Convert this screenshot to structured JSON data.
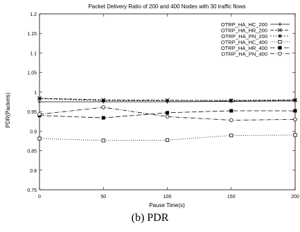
{
  "caption": "(b) PDR",
  "chart_data": {
    "type": "line",
    "title": "Packet Delivery Ratio of 200 and 400 Nodes with 30 traffic flows",
    "xlabel": "Pause Time(s)",
    "ylabel": "PDR(Packets)",
    "xlim": [
      0,
      200
    ],
    "ylim": [
      0.75,
      1.2
    ],
    "xticks": [
      0,
      50,
      100,
      150,
      200
    ],
    "yticks": [
      0.75,
      0.8,
      0.85,
      0.9,
      0.95,
      1,
      1.05,
      1.1,
      1.15,
      1.2
    ],
    "grid": false,
    "legend_position": "top-right",
    "x": [
      0,
      50,
      100,
      150,
      200
    ],
    "series": [
      {
        "name": "OTRP_HA_HC_200",
        "values": [
          0.975,
          0.975,
          0.975,
          0.976,
          0.977
        ],
        "marker": "plus",
        "dash": ""
      },
      {
        "name": "OTRP_HA_HR_200",
        "values": [
          0.984,
          0.98,
          0.979,
          0.978,
          0.979
        ],
        "marker": "cross",
        "dash": "5,2"
      },
      {
        "name": "OTRP_HA_PN_200",
        "values": [
          0.983,
          0.978,
          0.978,
          0.979,
          0.98
        ],
        "marker": "star",
        "dash": "2,2"
      },
      {
        "name": "OTRP_HA_HC_400",
        "values": [
          0.881,
          0.876,
          0.877,
          0.889,
          0.89
        ],
        "marker": "open-square",
        "dash": "1,2"
      },
      {
        "name": "OTRP_HA_HR_400",
        "values": [
          0.94,
          0.934,
          0.947,
          0.952,
          0.952
        ],
        "marker": "filled-square",
        "dash": "7,3"
      },
      {
        "name": "OTRP_HA_PN_400",
        "values": [
          0.943,
          0.961,
          0.937,
          0.928,
          0.93
        ],
        "marker": "open-circle",
        "dash": "6,2,1,2"
      }
    ]
  }
}
